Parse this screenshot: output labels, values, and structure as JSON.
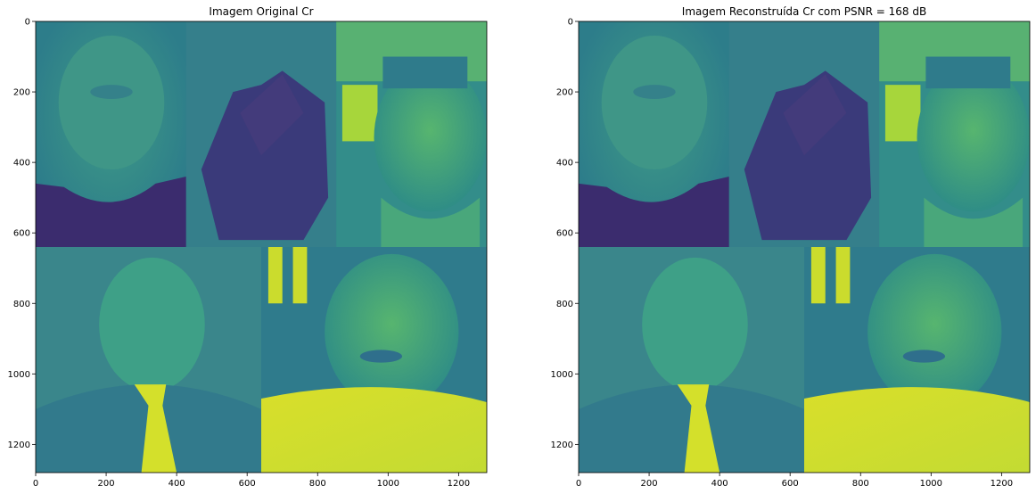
{
  "chart_data": [
    {
      "type": "heatmap",
      "title": "Imagem Original Cr",
      "xlim": [
        0,
        1280
      ],
      "ylim": [
        1280,
        0
      ],
      "xticks": [
        0,
        200,
        400,
        600,
        800,
        1000,
        1200
      ],
      "yticks": [
        0,
        200,
        400,
        600,
        800,
        1000,
        1200
      ],
      "colormap": "viridis",
      "blocks": [
        {
          "name": "top-left-face",
          "x": [
            0,
            427
          ],
          "y": [
            0,
            640
          ],
          "level": 0.42
        },
        {
          "name": "top-middle-arm",
          "x": [
            427,
            853
          ],
          "y": [
            0,
            640
          ],
          "level": 0.3
        },
        {
          "name": "top-right-face",
          "x": [
            853,
            1280
          ],
          "y": [
            0,
            640
          ],
          "level": 0.58
        },
        {
          "name": "bottom-left-shirt",
          "x": [
            0,
            640
          ],
          "y": [
            640,
            1280
          ],
          "level": 0.45
        },
        {
          "name": "bottom-right-face",
          "x": [
            640,
            1280
          ],
          "y": [
            640,
            1280
          ],
          "level": 0.62
        }
      ]
    },
    {
      "type": "heatmap",
      "title": "Imagem Reconstruída Cr com PSNR = 168 dB",
      "xlim": [
        0,
        1280
      ],
      "ylim": [
        1280,
        0
      ],
      "xticks": [
        0,
        200,
        400,
        600,
        800,
        1000,
        1200
      ],
      "yticks": [
        0,
        200,
        400,
        600,
        800,
        1000,
        1200
      ],
      "colormap": "viridis",
      "psnr_db": 168
    }
  ],
  "colors": {
    "background": "#3a7f8a",
    "dark_purple": "#3d2a6b",
    "teal": "#2f8f8b",
    "green": "#35a57f",
    "yellow_green": "#b8d832",
    "yellow": "#e0e31f"
  }
}
